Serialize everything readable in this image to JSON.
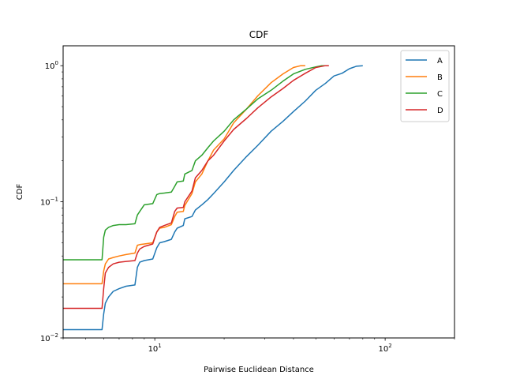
{
  "chart_data": {
    "type": "line",
    "title": "CDF",
    "xlabel": "Pairwise Euclidean Distance",
    "ylabel": "CDF",
    "xscale": "log",
    "yscale": "log",
    "xlim": [
      4,
      200
    ],
    "ylim": [
      0.01,
      1.4
    ],
    "grid": false,
    "legend_position": "top-right",
    "x_ticks": [
      {
        "value": 10,
        "base": "10",
        "exp": "1"
      },
      {
        "value": 100,
        "base": "10",
        "exp": "2"
      }
    ],
    "y_ticks": [
      {
        "value": 0.01,
        "base": "10",
        "exp": "−2"
      },
      {
        "value": 0.1,
        "base": "10",
        "exp": "−1"
      },
      {
        "value": 1,
        "base": "10",
        "exp": "0"
      }
    ],
    "series": [
      {
        "name": "A",
        "color": "#1f77b4",
        "x": [
          4,
          5.9,
          6.0,
          6.1,
          6.3,
          6.6,
          7.0,
          7.5,
          8.2,
          8.4,
          8.6,
          9.0,
          9.8,
          10.2,
          10.5,
          11.0,
          11.8,
          12.2,
          12.5,
          13.3,
          13.5,
          14.5,
          15.0,
          16.0,
          17.0,
          18.0,
          20.0,
          22.0,
          25.0,
          28.0,
          32.0,
          36.0,
          40.0,
          45.0,
          50.0,
          55.0,
          60.0,
          65.0,
          70.0,
          75.0,
          80.0
        ],
        "y": [
          0.0115,
          0.0115,
          0.015,
          0.018,
          0.02,
          0.022,
          0.023,
          0.024,
          0.0245,
          0.033,
          0.036,
          0.037,
          0.038,
          0.046,
          0.05,
          0.051,
          0.053,
          0.06,
          0.064,
          0.067,
          0.075,
          0.078,
          0.087,
          0.095,
          0.104,
          0.115,
          0.14,
          0.17,
          0.215,
          0.26,
          0.33,
          0.39,
          0.46,
          0.55,
          0.66,
          0.74,
          0.84,
          0.88,
          0.95,
          0.99,
          1.0
        ]
      },
      {
        "name": "B",
        "color": "#ff7f0e",
        "x": [
          4,
          5.9,
          6.0,
          6.1,
          6.3,
          6.6,
          7.0,
          7.5,
          8.2,
          8.4,
          8.6,
          9.0,
          9.8,
          10.2,
          10.5,
          11.0,
          11.8,
          12.2,
          12.5,
          13.3,
          13.5,
          14.5,
          15.0,
          16.0,
          17.0,
          18.0,
          20.0,
          22.0,
          25.0,
          28.0,
          32.0,
          36.0,
          40.0,
          43.0,
          45.0
        ],
        "y": [
          0.025,
          0.025,
          0.031,
          0.035,
          0.038,
          0.039,
          0.04,
          0.041,
          0.042,
          0.048,
          0.0485,
          0.049,
          0.05,
          0.06,
          0.064,
          0.065,
          0.068,
          0.078,
          0.084,
          0.085,
          0.094,
          0.115,
          0.14,
          0.16,
          0.2,
          0.24,
          0.29,
          0.38,
          0.48,
          0.6,
          0.75,
          0.87,
          0.97,
          1.0,
          1.0
        ]
      },
      {
        "name": "C",
        "color": "#2ca02c",
        "x": [
          4,
          5.9,
          6.0,
          6.1,
          6.3,
          6.6,
          7.0,
          7.5,
          8.2,
          8.4,
          8.6,
          9.0,
          9.8,
          10.2,
          10.5,
          11.0,
          11.8,
          12.2,
          12.5,
          13.3,
          13.5,
          14.5,
          15.0,
          16.0,
          17.0,
          18.0,
          20.0,
          22.0,
          25.0,
          28.0,
          32.0,
          36.0,
          40.0,
          45.0,
          50.0,
          53.0,
          55.0
        ],
        "y": [
          0.0375,
          0.0375,
          0.055,
          0.062,
          0.065,
          0.067,
          0.068,
          0.068,
          0.069,
          0.08,
          0.085,
          0.095,
          0.097,
          0.113,
          0.115,
          0.116,
          0.118,
          0.13,
          0.14,
          0.142,
          0.16,
          0.17,
          0.2,
          0.22,
          0.25,
          0.28,
          0.33,
          0.4,
          0.48,
          0.57,
          0.66,
          0.77,
          0.87,
          0.94,
          0.98,
          1.0,
          1.0
        ]
      },
      {
        "name": "D",
        "color": "#d62728",
        "x": [
          4,
          5.9,
          6.0,
          6.1,
          6.3,
          6.6,
          7.0,
          7.5,
          8.2,
          8.4,
          8.6,
          9.0,
          9.8,
          10.2,
          10.5,
          11.0,
          11.8,
          12.2,
          12.5,
          13.3,
          13.5,
          14.5,
          15.0,
          16.0,
          17.0,
          18.0,
          20.0,
          22.0,
          25.0,
          28.0,
          32.0,
          36.0,
          40.0,
          45.0,
          50.0,
          55.0,
          57.0
        ],
        "y": [
          0.0165,
          0.0165,
          0.023,
          0.03,
          0.033,
          0.035,
          0.036,
          0.0365,
          0.037,
          0.042,
          0.045,
          0.047,
          0.049,
          0.06,
          0.065,
          0.067,
          0.07,
          0.085,
          0.09,
          0.091,
          0.1,
          0.12,
          0.15,
          0.17,
          0.2,
          0.22,
          0.28,
          0.34,
          0.41,
          0.49,
          0.59,
          0.68,
          0.78,
          0.88,
          0.97,
          1.0,
          1.0
        ]
      }
    ]
  }
}
